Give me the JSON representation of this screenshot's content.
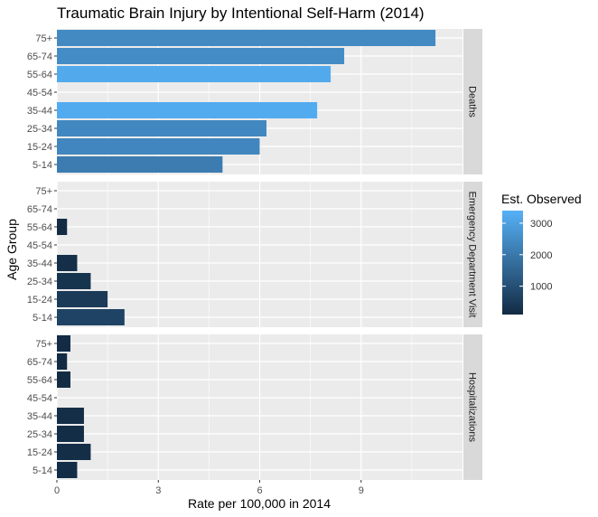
{
  "chart_data": {
    "type": "bar",
    "orientation": "horizontal",
    "title": "Traumatic Brain Injury by Intentional Self-Harm (2014)",
    "xlabel": "Rate per 100,000 in 2014",
    "ylabel": "Age Group",
    "xlim": [
      0,
      12
    ],
    "x_ticks": [
      "0",
      "3",
      "6",
      "9"
    ],
    "categories": [
      "5-14",
      "15-24",
      "25-34",
      "35-44",
      "45-54",
      "55-64",
      "65-74",
      "75+"
    ],
    "facets": [
      {
        "name": "Deaths",
        "values": [
          4.9,
          6.0,
          6.2,
          7.7,
          null,
          8.1,
          8.5,
          11.2
        ],
        "observed": [
          2100,
          2350,
          2400,
          3250,
          null,
          3200,
          2500,
          2450
        ]
      },
      {
        "name": "Emergency Department Visit",
        "values": [
          2.0,
          1.5,
          1.0,
          0.6,
          null,
          0.3,
          null,
          null
        ],
        "observed": [
          700,
          480,
          320,
          200,
          null,
          120,
          null,
          null
        ]
      },
      {
        "name": "Hospitalizations",
        "values": [
          0.6,
          1.0,
          0.8,
          0.8,
          null,
          0.4,
          0.3,
          0.4
        ],
        "observed": [
          150,
          180,
          160,
          180,
          null,
          120,
          100,
          110
        ]
      }
    ],
    "legend": {
      "title": "Est. Observed",
      "labels": [
        "1000",
        "2000",
        "3000"
      ],
      "ticks": [
        1000,
        2000,
        3000
      ],
      "range": [
        100,
        3400
      ],
      "low_color": "#132B43",
      "high_color": "#56B1F7",
      "position": "right"
    },
    "grid": true
  }
}
